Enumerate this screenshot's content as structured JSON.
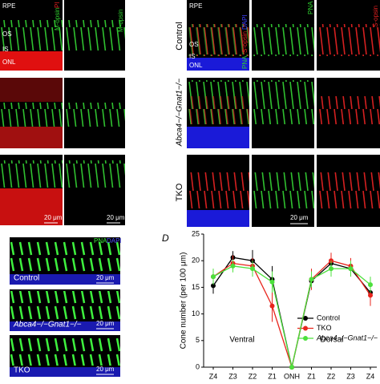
{
  "panel_a": {
    "layer_labels": [
      "RPE",
      "OS",
      "IS",
      "ONL"
    ],
    "channel_labels": [
      "M-opsin",
      "PI",
      "M-opsin"
    ],
    "scale_bar": "20 μm"
  },
  "panel_b": {
    "layer_labels": [
      "RPE",
      "OS",
      "IS",
      "ONL"
    ],
    "channel_labels": [
      "PNA",
      "S-opsin",
      "DAPI",
      "PNA",
      "S-opsin"
    ],
    "rows": [
      "Control",
      "Abca4−/−Gnat1−/−",
      "TKO"
    ],
    "scale_bar": "20 μm"
  },
  "panel_c": {
    "channel_labels": [
      "PNA",
      "DAPI"
    ],
    "rows": [
      "Control",
      "Abca4−/−Gnat1−/−",
      "TKO"
    ],
    "scale_bar": "20 μm"
  },
  "chart_data": {
    "type": "line",
    "panel_label": "D",
    "ylabel": "Cone number (per 100 μm)",
    "categories": [
      "Z4",
      "Z3",
      "Z2",
      "Z1",
      "ONH",
      "Z1",
      "Z2",
      "Z3",
      "Z4"
    ],
    "ylim": [
      0,
      25
    ],
    "yticks": [
      0,
      5,
      10,
      15,
      20,
      25
    ],
    "annotations": [
      "Ventral",
      "Dorsal"
    ],
    "legend": "lower right",
    "series": [
      {
        "name": "Control",
        "color": "#000000",
        "values": [
          15.3,
          20.6,
          20.0,
          16.5,
          0,
          16.2,
          19.5,
          18.5,
          14.0
        ],
        "errors": [
          1.5,
          1.2,
          2.0,
          2.5,
          0,
          1.5,
          1.5,
          1.2,
          1.5
        ]
      },
      {
        "name": "TKO",
        "color": "#e8251d",
        "values": [
          17.0,
          19.5,
          19.0,
          11.5,
          0,
          16.5,
          20.0,
          19.0,
          13.5
        ],
        "errors": [
          1.2,
          1.5,
          1.5,
          3.0,
          0,
          2.0,
          1.5,
          1.5,
          2.0
        ]
      },
      {
        "name": "Abca4−/−Gnat1−/−",
        "color": "#4ce03c",
        "values": [
          17.0,
          19.0,
          18.5,
          16.0,
          0,
          16.5,
          18.5,
          18.5,
          15.5
        ],
        "errors": [
          1.5,
          1.2,
          1.5,
          2.0,
          0,
          1.5,
          1.5,
          1.5,
          1.5
        ]
      }
    ]
  }
}
